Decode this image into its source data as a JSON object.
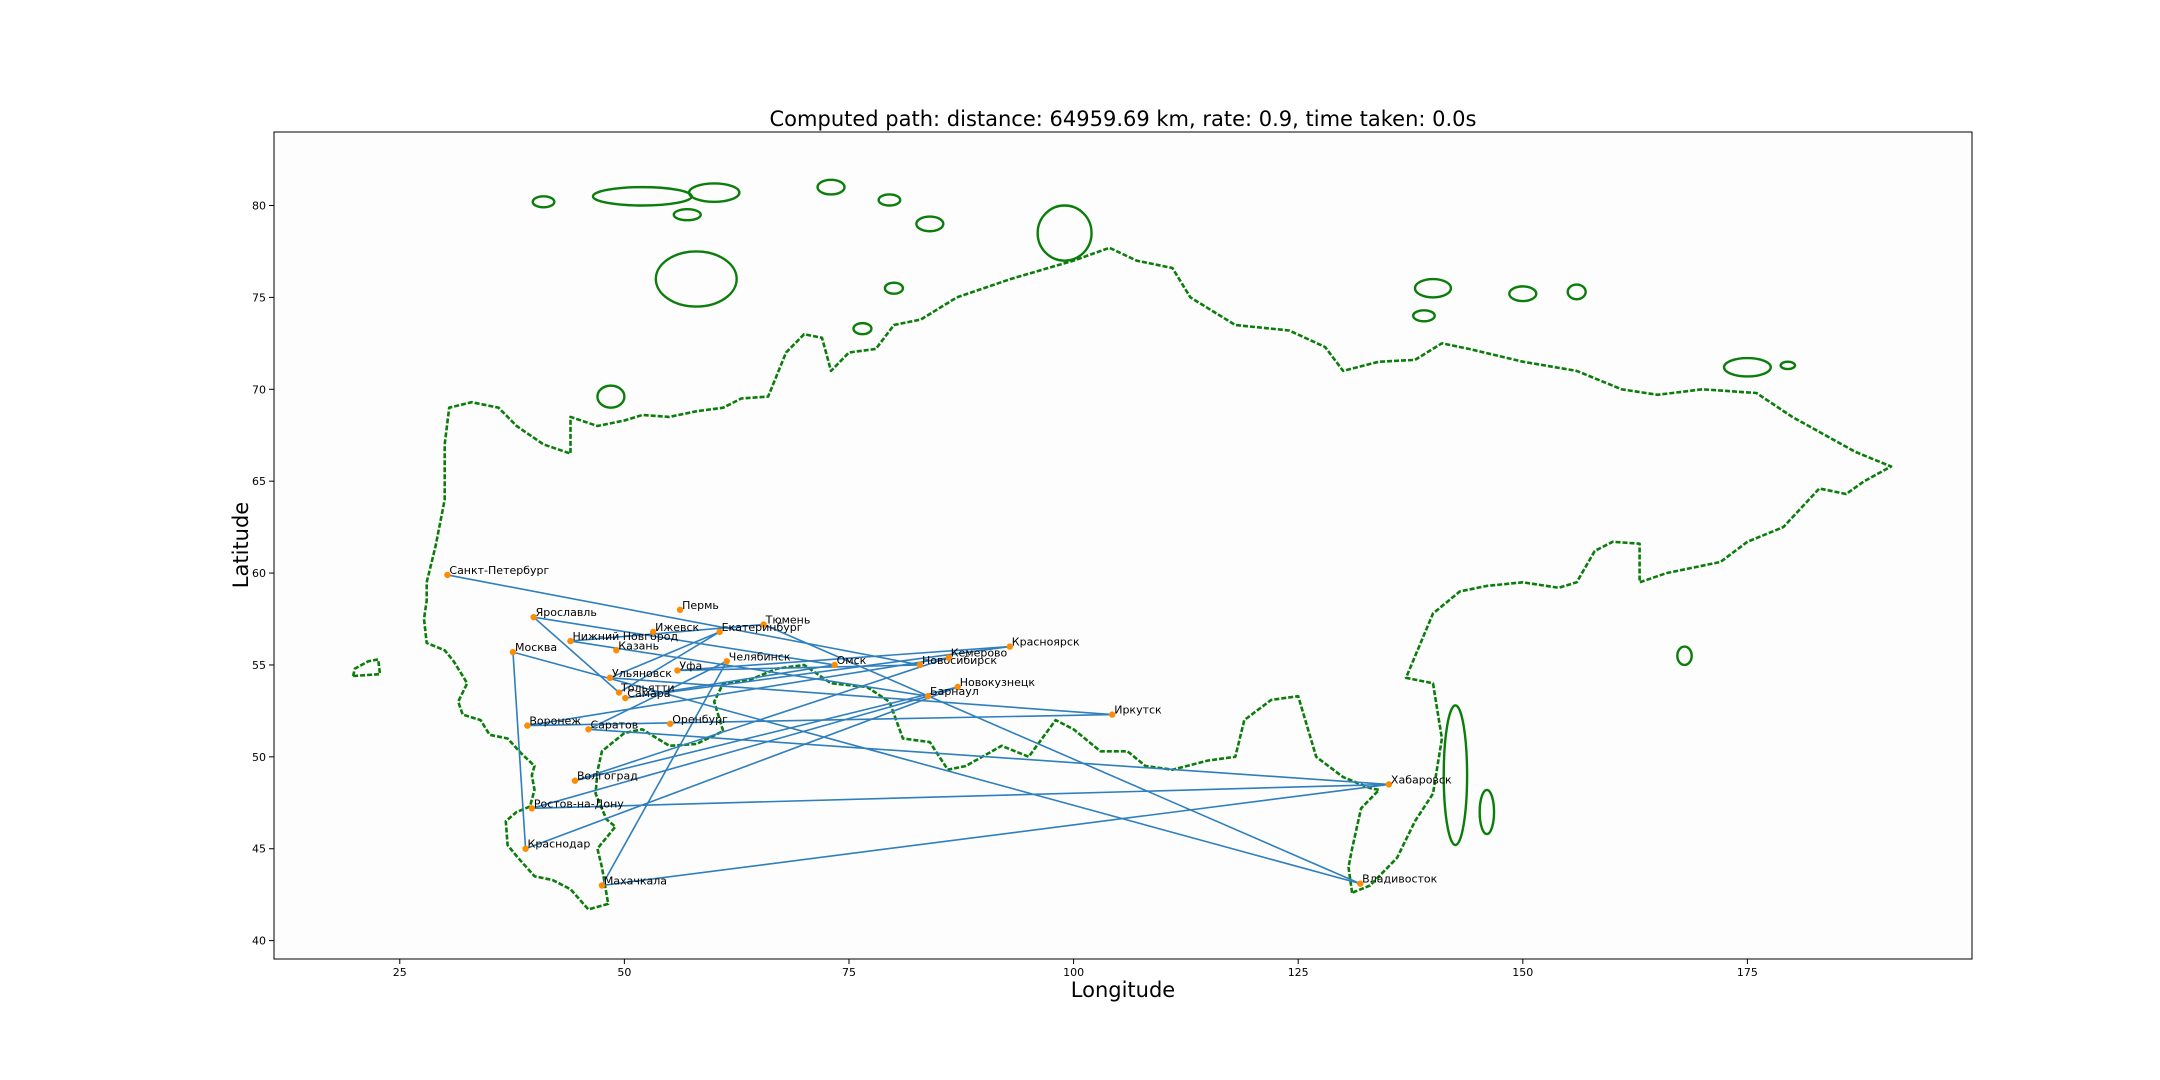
{
  "chart_data": {
    "type": "scatter",
    "title": "Computed path: distance: 64959.69 km, rate: 0.9, time taken: 0.0s",
    "xlabel": "Longitude",
    "ylabel": "Latitude",
    "xlim": [
      11,
      200
    ],
    "ylim": [
      39,
      84
    ],
    "xticks": [
      25,
      50,
      75,
      100,
      125,
      150,
      175
    ],
    "yticks": [
      40,
      45,
      50,
      55,
      60,
      65,
      70,
      75,
      80
    ],
    "grid": false,
    "colors": {
      "coast": "#0a7d0a",
      "route": "#2f7fbd",
      "city": "#ff8c00"
    },
    "cities": [
      {
        "name": "Санкт-Петербург",
        "lon": 30.3,
        "lat": 59.9
      },
      {
        "name": "Ярославль",
        "lon": 39.9,
        "lat": 57.6
      },
      {
        "name": "Нижний Новгород",
        "lon": 44.0,
        "lat": 56.3
      },
      {
        "name": "Москва",
        "lon": 37.6,
        "lat": 55.7
      },
      {
        "name": "Казань",
        "lon": 49.1,
        "lat": 55.8
      },
      {
        "name": "Пермь",
        "lon": 56.2,
        "lat": 58.0
      },
      {
        "name": "Ижевск",
        "lon": 53.2,
        "lat": 56.8
      },
      {
        "name": "Тюмень",
        "lon": 65.5,
        "lat": 57.2
      },
      {
        "name": "Екатеринбург",
        "lon": 60.6,
        "lat": 56.8
      },
      {
        "name": "Челябинск",
        "lon": 61.4,
        "lat": 55.2
      },
      {
        "name": "Уфа",
        "lon": 55.9,
        "lat": 54.7
      },
      {
        "name": "Омск",
        "lon": 73.4,
        "lat": 55.0
      },
      {
        "name": "Новосибирск",
        "lon": 82.9,
        "lat": 55.0
      },
      {
        "name": "Кемерово",
        "lon": 86.1,
        "lat": 55.4
      },
      {
        "name": "Красноярск",
        "lon": 92.9,
        "lat": 56.0
      },
      {
        "name": "Новокузнецк",
        "lon": 87.1,
        "lat": 53.8
      },
      {
        "name": "Барнаул",
        "lon": 83.8,
        "lat": 53.3
      },
      {
        "name": "Иркутск",
        "lon": 104.3,
        "lat": 52.3
      },
      {
        "name": "Ульяновск",
        "lon": 48.4,
        "lat": 54.3
      },
      {
        "name": "Тольятти",
        "lon": 49.4,
        "lat": 53.5
      },
      {
        "name": "Самара",
        "lon": 50.1,
        "lat": 53.2
      },
      {
        "name": "Воронеж",
        "lon": 39.2,
        "lat": 51.7
      },
      {
        "name": "Саратов",
        "lon": 46.0,
        "lat": 51.5
      },
      {
        "name": "Оренбург",
        "lon": 55.1,
        "lat": 51.8
      },
      {
        "name": "Волгоград",
        "lon": 44.5,
        "lat": 48.7
      },
      {
        "name": "Ростов-на-Дону",
        "lon": 39.7,
        "lat": 47.2
      },
      {
        "name": "Краснодар",
        "lon": 39.0,
        "lat": 45.0
      },
      {
        "name": "Махачкала",
        "lon": 47.5,
        "lat": 43.0
      },
      {
        "name": "Хабаровск",
        "lon": 135.1,
        "lat": 48.5
      },
      {
        "name": "Владивосток",
        "lon": 131.9,
        "lat": 43.1
      }
    ],
    "route": [
      "Санкт-Петербург",
      "Новосибирск",
      "Уфа",
      "Красноярск",
      "Самара",
      "Омск",
      "Ярославль",
      "Тольятти",
      "Екатеринбург",
      "Ульяновск",
      "Иркутск",
      "Воронеж",
      "Кемерово",
      "Волгоград",
      "Новокузнецк",
      "Краснодар",
      "Москва",
      "Владивосток",
      "Тюмень",
      "Нижний Новгород",
      "Барнаул",
      "Ростов-на-Дону",
      "Хабаровск",
      "Саратов",
      "Челябинск",
      "Махачкала",
      "Хабаровск"
    ]
  }
}
